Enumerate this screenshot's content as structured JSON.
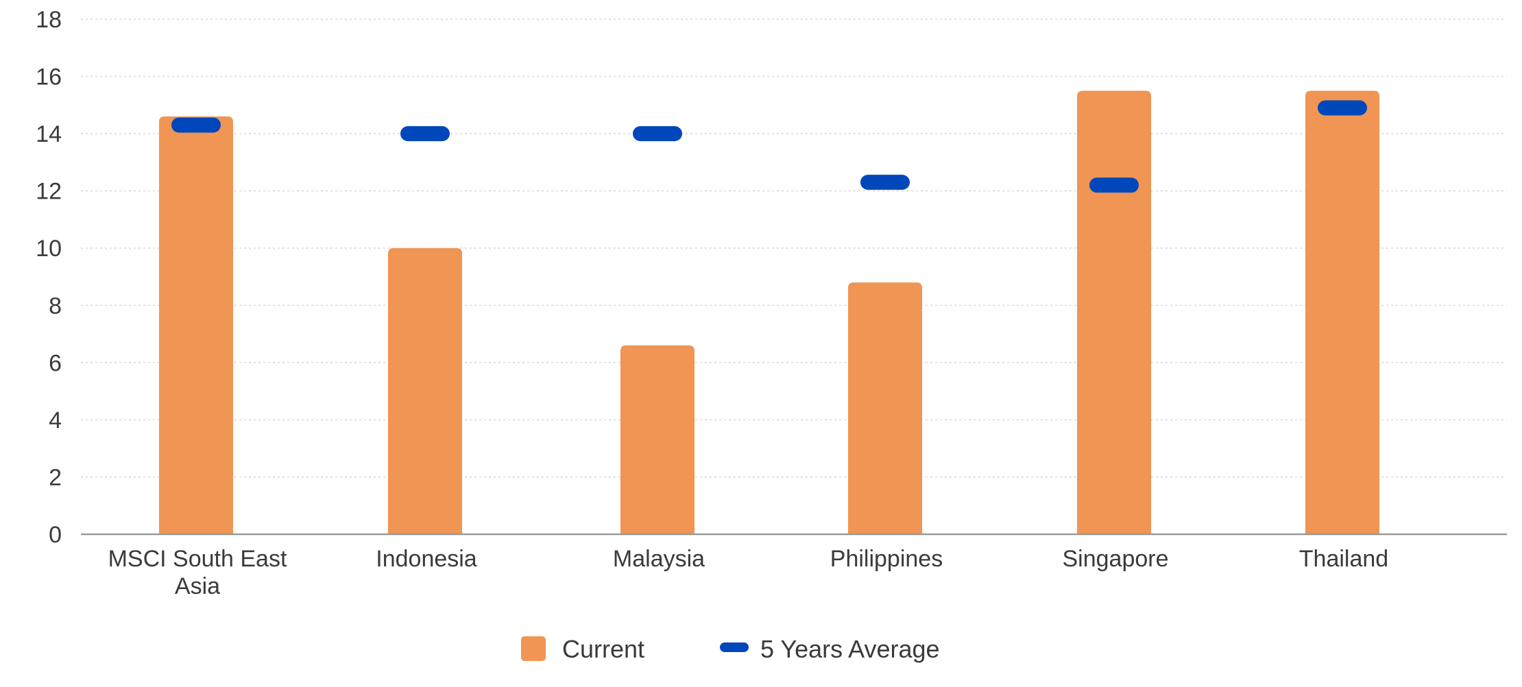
{
  "chart_data": {
    "type": "bar",
    "categories": [
      [
        "MSCI South East",
        "Asia"
      ],
      [
        "Indonesia"
      ],
      [
        "Malaysia"
      ],
      [
        "Philippines"
      ],
      [
        "Singapore"
      ],
      [
        "Thailand"
      ]
    ],
    "series": [
      {
        "name": "Current",
        "kind": "bar",
        "color": "#F09553",
        "values": [
          14.6,
          10.0,
          6.6,
          8.8,
          15.5,
          15.5
        ]
      },
      {
        "name": "5 Years Average",
        "kind": "marker",
        "color": "#0047BB",
        "values": [
          14.3,
          14.0,
          14.0,
          12.3,
          12.2,
          14.9
        ]
      }
    ],
    "yticks": [
      0,
      2,
      4,
      6,
      8,
      10,
      12,
      14,
      16,
      18
    ],
    "ylim": [
      0,
      18
    ],
    "grid": true,
    "legend_position": "bottom-center",
    "title": "",
    "xlabel": "",
    "ylabel": ""
  }
}
